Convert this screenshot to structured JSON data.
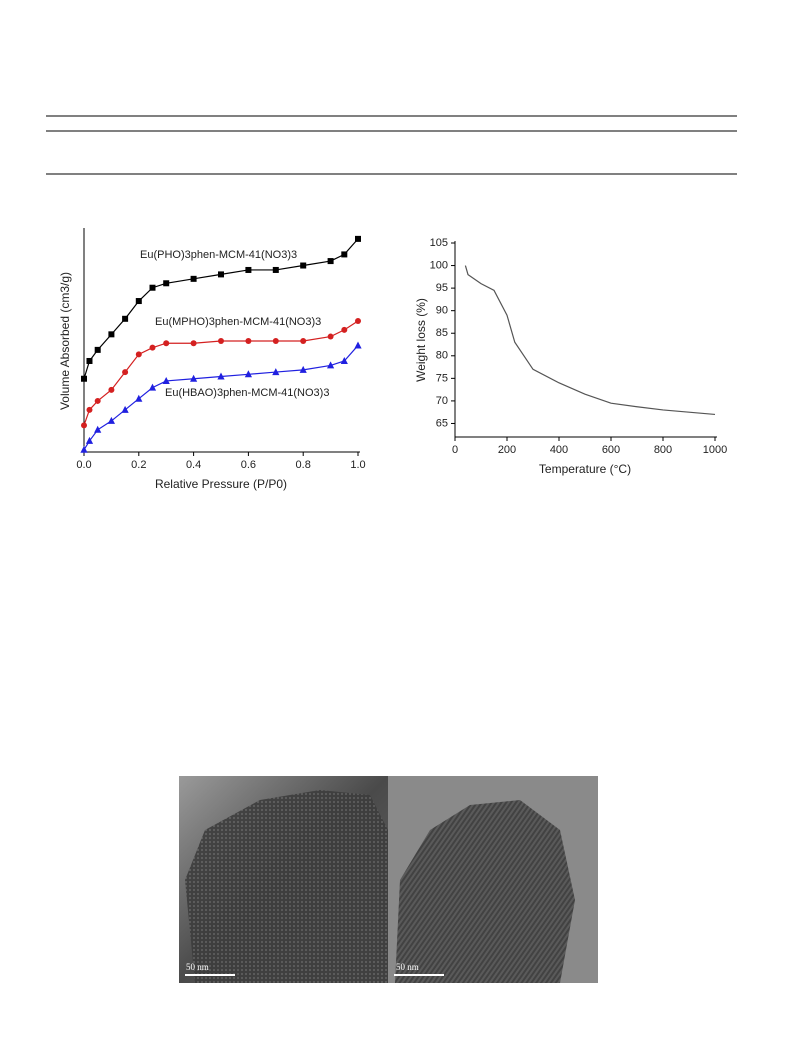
{
  "chart_data": [
    {
      "type": "scatter-line",
      "ylabel": "Volume Absorbed (cm3/g)",
      "xlabel": "Relative Pressure (P/P0)",
      "x": [
        0,
        0.02,
        0.05,
        0.1,
        0.15,
        0.2,
        0.25,
        0.3,
        0.4,
        0.5,
        0.6,
        0.7,
        0.8,
        0.9,
        0.95,
        1.0
      ],
      "xlim": [
        0,
        1.0
      ],
      "ylim": [
        0,
        100
      ],
      "xticks": [
        {
          "value": 0,
          "label": "0.0"
        },
        0.2,
        0.4,
        0.6,
        0.8,
        {
          "value": 1.0,
          "label": "1.0"
        }
      ],
      "series": [
        {
          "name": "Eu(PHO)3phen-MCM-41(NO3)3",
          "color": "#000000",
          "marker": "square",
          "values": [
            33,
            41,
            46,
            53,
            60,
            68,
            74,
            76,
            78,
            80,
            82,
            82,
            84,
            86,
            89,
            96
          ]
        },
        {
          "name": "Eu(MPHO)3phen-MCM-41(NO3)3",
          "color": "#d42020",
          "marker": "circle",
          "values": [
            12,
            19,
            23,
            28,
            36,
            44,
            47,
            49,
            49,
            50,
            50,
            50,
            50,
            52,
            55,
            59
          ]
        },
        {
          "name": "Eu(HBAO)3phen-MCM-41(NO3)3",
          "color": "#2020e0",
          "marker": "triangle",
          "values": [
            1,
            5,
            10,
            14,
            19,
            24,
            29,
            32,
            33,
            34,
            35,
            36,
            37,
            39,
            41,
            48
          ]
        }
      ]
    },
    {
      "type": "line",
      "ylabel": "Weight loss (%)",
      "xlabel": "Temperature (°C)",
      "x": [
        40,
        50,
        100,
        150,
        200,
        230,
        300,
        400,
        500,
        600,
        700,
        800,
        900,
        1000
      ],
      "values": [
        100,
        98,
        96,
        94.5,
        89,
        83,
        77,
        74,
        71.5,
        69.5,
        68.7,
        68,
        67.5,
        67
      ],
      "color": "#555555",
      "xlim": [
        0,
        1000
      ],
      "ylim": [
        62,
        105
      ],
      "xticks": [
        0,
        200,
        400,
        600,
        800,
        1000
      ],
      "yticks": [
        65,
        70,
        75,
        80,
        85,
        90,
        95,
        100,
        105
      ]
    }
  ],
  "image": {
    "scale_labels": [
      "50 nm",
      "50 nm"
    ]
  }
}
